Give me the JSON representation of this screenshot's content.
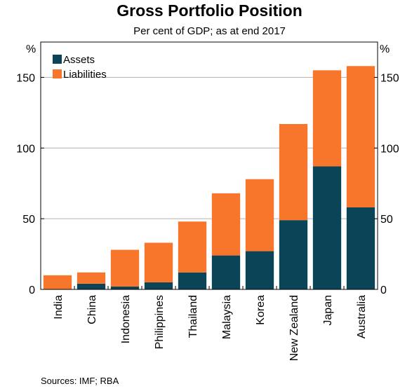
{
  "chart_data": {
    "type": "bar",
    "stacked": true,
    "title": "Gross Portfolio Position",
    "subtitle": "Per cent of GDP; as at end 2017",
    "ylabel_left": "%",
    "ylabel_right": "%",
    "ylim": [
      0,
      175
    ],
    "yticks": [
      0,
      50,
      100,
      150
    ],
    "grid": true,
    "legend_position": "top-left",
    "categories": [
      "India",
      "China",
      "Indonesia",
      "Philippines",
      "Thailand",
      "Malaysia",
      "Korea",
      "New Zealand",
      "Japan",
      "Australia"
    ],
    "series": [
      {
        "name": "Assets",
        "color": "#0b4456",
        "values": [
          0,
          4,
          2,
          5,
          12,
          24,
          27,
          49,
          87,
          58
        ]
      },
      {
        "name": "Liabilities",
        "color": "#f7762b",
        "values": [
          10,
          8,
          26,
          28,
          36,
          44,
          51,
          68,
          68,
          100
        ]
      }
    ]
  },
  "source": "Sources:  IMF; RBA"
}
